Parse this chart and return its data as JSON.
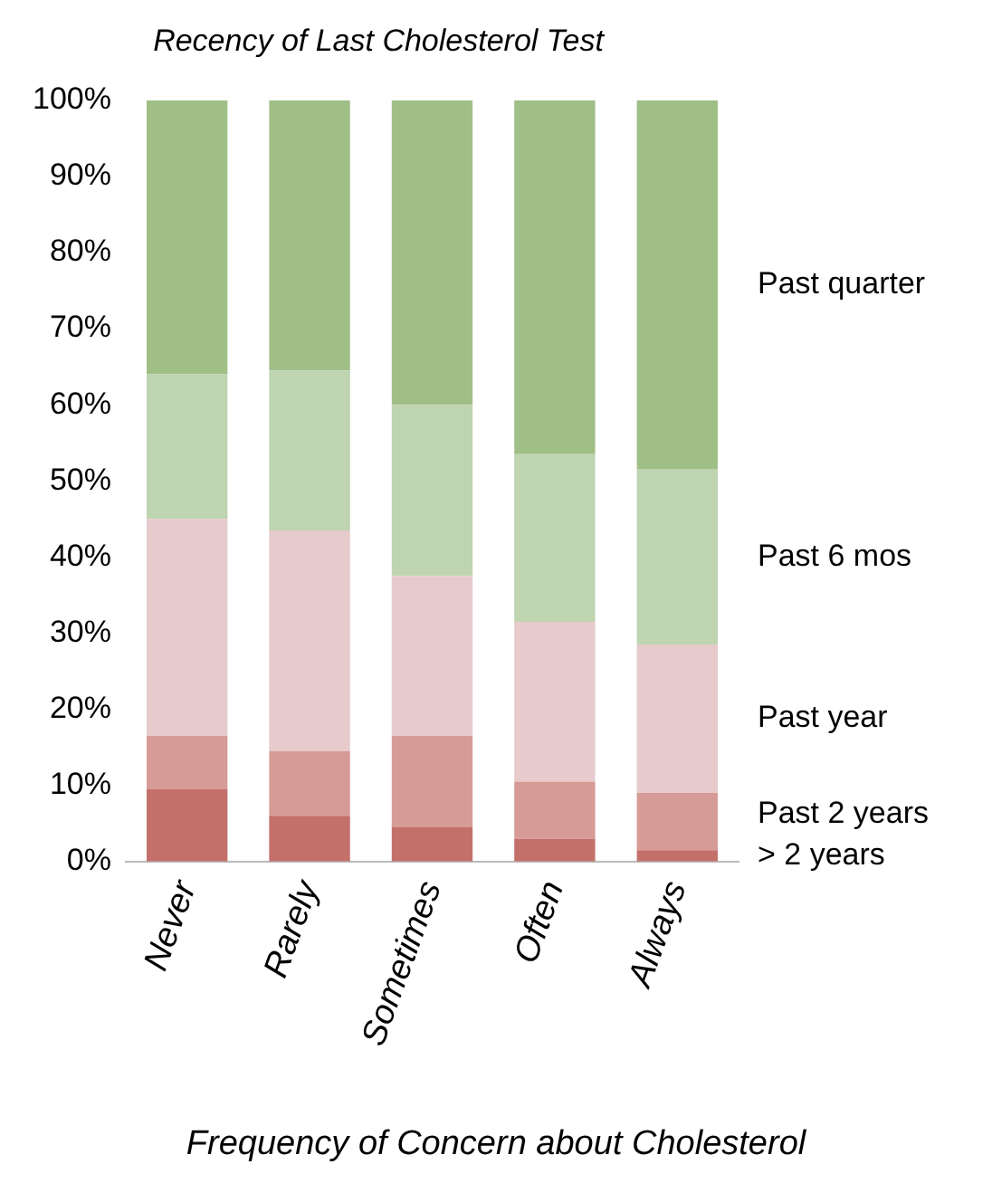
{
  "chart_data": {
    "type": "bar",
    "stacked": true,
    "title": "Recency of Last Cholesterol Test",
    "xlabel": "Frequency of Concern about Cholesterol",
    "categories": [
      "Never",
      "Rarely",
      "Sometimes",
      "Often",
      "Always"
    ],
    "series": [
      {
        "name": "> 2 years",
        "color": "#c4706a",
        "values": [
          9.5,
          6,
          4.5,
          3,
          1.5
        ]
      },
      {
        "name": "Past 2 years",
        "color": "#d69b96",
        "values": [
          7,
          8.5,
          12,
          7.5,
          7.5
        ]
      },
      {
        "name": "Past year",
        "color": "#e6cacc",
        "values": [
          28.5,
          29,
          21,
          21,
          19.5
        ]
      },
      {
        "name": "Past 6 mos",
        "color": "#bfd4b0",
        "values": [
          19,
          21,
          22.5,
          22,
          23
        ]
      },
      {
        "name": "Past quarter",
        "color": "#9fbf87",
        "values": [
          36,
          35.5,
          40,
          46.5,
          48.5
        ]
      }
    ],
    "ylim": [
      0,
      100
    ],
    "yticks": [
      {
        "value": 0,
        "label": "0%"
      },
      {
        "value": 10,
        "label": "10%"
      },
      {
        "value": 20,
        "label": "20%"
      },
      {
        "value": 30,
        "label": "30%"
      },
      {
        "value": 40,
        "label": "40%"
      },
      {
        "value": 50,
        "label": "50%"
      },
      {
        "value": 60,
        "label": "60%"
      },
      {
        "value": 70,
        "label": "70%"
      },
      {
        "value": 80,
        "label": "80%"
      },
      {
        "value": 90,
        "label": "90%"
      },
      {
        "value": 100,
        "label": "100%"
      }
    ],
    "grid": false
  }
}
